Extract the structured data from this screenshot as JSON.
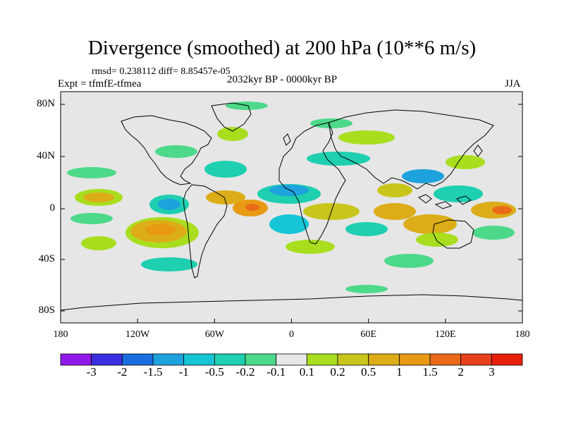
{
  "title": "Divergence (smoothed) at 200 hPa (10**6 m/s)",
  "stats": "rmsd= 0.238112 diff= 8.85457e-05",
  "experiment": "Expt = tfmfE-tfmea",
  "period": "2032kyr BP - 0000kyr BP",
  "season": "JJA",
  "map": {
    "background_color": "#e6e6e6",
    "y_ticks": [
      "80N",
      "40N",
      "0",
      "40S",
      "80S"
    ],
    "x_ticks": [
      "180",
      "120W",
      "60W",
      "0",
      "60E",
      "120E",
      "180"
    ]
  },
  "colorbar": {
    "colors": [
      "#8f19e8",
      "#3a2fe0",
      "#1a6ee0",
      "#1ea2de",
      "#17c6d6",
      "#1ecfb0",
      "#4cd98a",
      "#e6e6e6",
      "#a8de1e",
      "#c8c61c",
      "#dcad18",
      "#e89a14",
      "#ea6a18",
      "#e8401c",
      "#e8200a"
    ],
    "labels": [
      "-3",
      "-2",
      "-1.5",
      "-1",
      "-0.5",
      "-0.2",
      "-0.1",
      "0.1",
      "0.2",
      "0.5",
      "1",
      "1.5",
      "2",
      "3"
    ]
  }
}
